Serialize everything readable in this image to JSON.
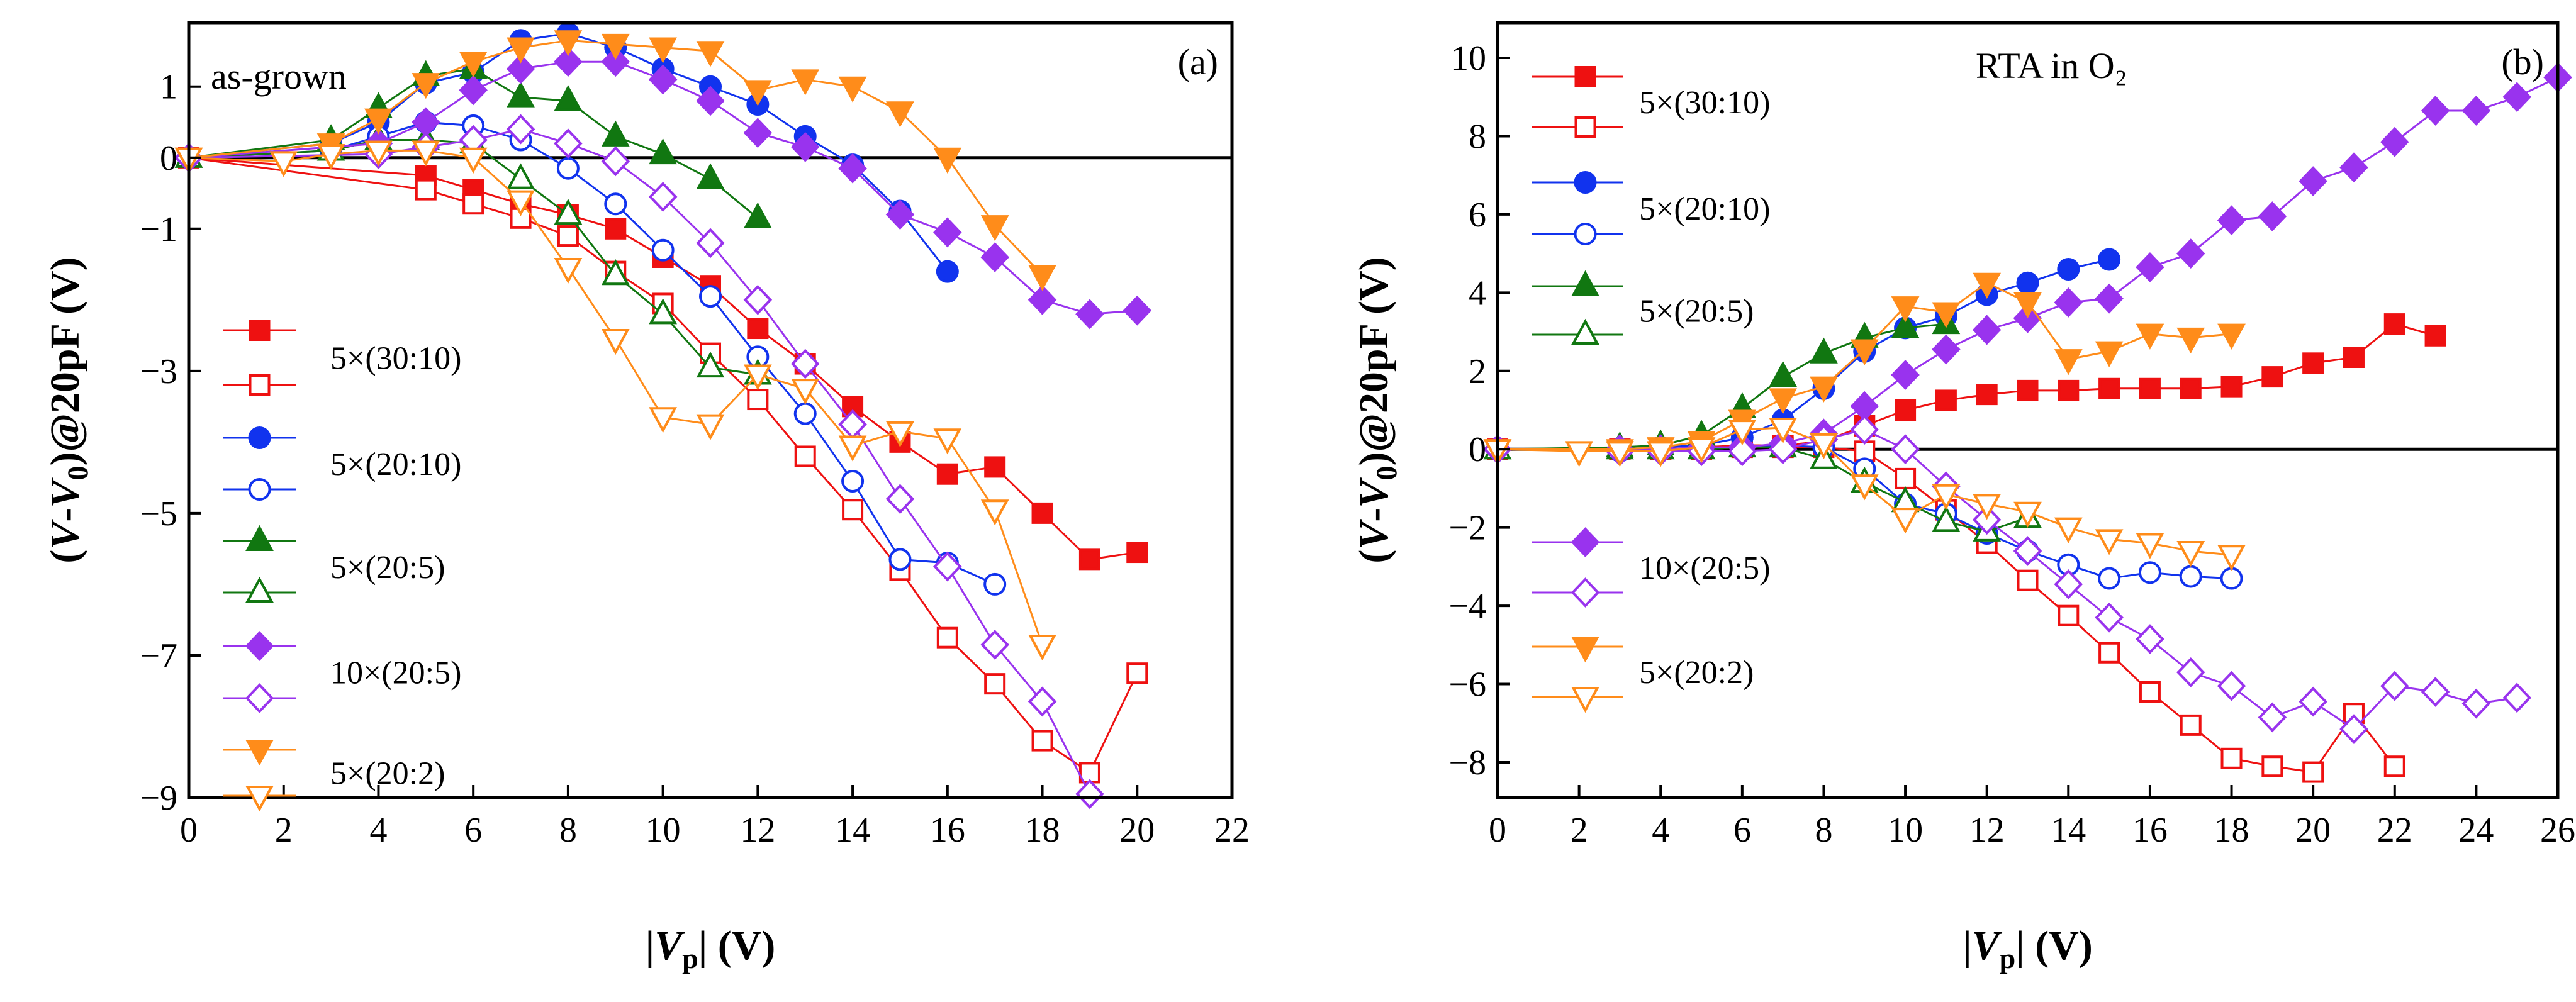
{
  "colors": {
    "5x30_10": "#ee1111",
    "5x20_10": "#1133ee",
    "5x20_5": "#117711",
    "10x20_5": "#9933ee",
    "5x20_2": "#ff8c1a"
  },
  "chart_data": [
    {
      "type": "line",
      "panel_label": "(a)",
      "annotation": "as-grown",
      "xlabel": "|V_p| (V)",
      "ylabel": "(V-V_0)@20pF (V)",
      "xlim": [
        0,
        22
      ],
      "ylim": [
        -9,
        1.9
      ],
      "xticks": [
        "0",
        "2",
        "4",
        "6",
        "8",
        "10",
        "12",
        "14",
        "16",
        "18",
        "20",
        "22"
      ],
      "yticks": [
        "1",
        "0",
        "−1",
        "−3",
        "−5",
        "−7",
        "−9"
      ],
      "ytick_values": [
        1,
        0,
        -1,
        -3,
        -5,
        -7,
        -9
      ],
      "series": [
        {
          "name": "5×(30:10)",
          "color_key": "5x30_10",
          "marker": "square",
          "filled": true,
          "x": [
            0,
            5,
            6,
            7,
            8,
            9,
            10,
            11,
            12,
            13,
            14,
            15,
            16,
            17,
            18,
            19,
            20
          ],
          "y": [
            0,
            -0.25,
            -0.45,
            -0.65,
            -0.8,
            -1.0,
            -1.4,
            -1.8,
            -2.4,
            -2.9,
            -3.5,
            -4.0,
            -4.45,
            -4.35,
            -5.0,
            -5.65,
            -5.55
          ]
        },
        {
          "name": "5×(30:10)",
          "color_key": "5x30_10",
          "marker": "square",
          "filled": false,
          "x": [
            0,
            5,
            6,
            7,
            8,
            9,
            10,
            11,
            12,
            13,
            14,
            15,
            16,
            17,
            18,
            19,
            20
          ],
          "y": [
            0,
            -0.45,
            -0.65,
            -0.85,
            -1.1,
            -1.6,
            -2.05,
            -2.75,
            -3.4,
            -4.2,
            -4.95,
            -5.8,
            -6.75,
            -7.4,
            -8.2,
            -8.65,
            -7.25
          ]
        },
        {
          "name": "5×(20:10)",
          "color_key": "5x20_10",
          "marker": "circle",
          "filled": true,
          "x": [
            0,
            3,
            4,
            5,
            6,
            7,
            8,
            9,
            10,
            11,
            12,
            13,
            14,
            15,
            16
          ],
          "y": [
            0,
            0.2,
            0.5,
            1.05,
            1.2,
            1.65,
            1.75,
            1.55,
            1.25,
            1.0,
            0.75,
            0.3,
            -0.1,
            -0.75,
            -1.6
          ]
        },
        {
          "name": "5×(20:10)",
          "color_key": "5x20_10",
          "marker": "circle",
          "filled": false,
          "x": [
            0,
            3,
            4,
            5,
            6,
            7,
            8,
            9,
            10,
            11,
            12,
            13,
            14,
            15,
            16,
            17
          ],
          "y": [
            0,
            0.1,
            0.3,
            0.5,
            0.45,
            0.25,
            -0.15,
            -0.65,
            -1.3,
            -1.95,
            -2.8,
            -3.6,
            -4.55,
            -5.65,
            -5.7,
            -6.0
          ]
        },
        {
          "name": "5×(20:5)",
          "color_key": "5x20_5",
          "marker": "triangle",
          "filled": true,
          "x": [
            0,
            3,
            4,
            5,
            6,
            7,
            8,
            9,
            10,
            11,
            12
          ],
          "y": [
            0,
            0.25,
            0.7,
            1.15,
            1.25,
            0.85,
            0.8,
            0.3,
            0.05,
            -0.3,
            -0.85
          ]
        },
        {
          "name": "5×(20:5)",
          "color_key": "5x20_5",
          "marker": "triangle",
          "filled": false,
          "x": [
            0,
            3,
            4,
            5,
            6,
            7,
            8,
            9,
            10,
            11,
            12
          ],
          "y": [
            0,
            0.1,
            0.25,
            0.25,
            0.2,
            -0.3,
            -0.8,
            -1.65,
            -2.2,
            -2.95,
            -3.05
          ]
        },
        {
          "name": "10×(20:5)",
          "color_key": "10x20_5",
          "marker": "diamond",
          "filled": true,
          "x": [
            0,
            4,
            5,
            6,
            7,
            8,
            9,
            10,
            11,
            12,
            13,
            14,
            15,
            16,
            17,
            18,
            19,
            20
          ],
          "y": [
            0,
            0.2,
            0.5,
            0.95,
            1.25,
            1.35,
            1.35,
            1.1,
            0.8,
            0.35,
            0.15,
            -0.15,
            -0.8,
            -1.05,
            -1.4,
            -2.0,
            -2.2,
            -2.15
          ]
        },
        {
          "name": "10×(20:5)",
          "color_key": "10x20_5",
          "marker": "diamond",
          "filled": false,
          "x": [
            0,
            4,
            5,
            6,
            7,
            8,
            9,
            10,
            11,
            12,
            13,
            14,
            15,
            16,
            17,
            18,
            19
          ],
          "y": [
            0,
            0.05,
            0.15,
            0.25,
            0.4,
            0.2,
            -0.05,
            -0.55,
            -1.2,
            -2.0,
            -2.9,
            -3.75,
            -4.8,
            -5.75,
            -6.85,
            -7.65,
            -8.95
          ]
        },
        {
          "name": "5×(20:2)",
          "color_key": "5x20_2",
          "marker": "triangle-down",
          "filled": true,
          "x": [
            0,
            3,
            4,
            5,
            6,
            7,
            8,
            9,
            10,
            11,
            12,
            13,
            14,
            15,
            16,
            17,
            18
          ],
          "y": [
            0,
            0.2,
            0.55,
            1.05,
            1.35,
            1.55,
            1.65,
            1.6,
            1.55,
            1.5,
            0.95,
            1.1,
            1.0,
            0.65,
            0.0,
            -0.95,
            -1.65
          ]
        },
        {
          "name": "5×(20:2)",
          "color_key": "5x20_2",
          "marker": "triangle-down",
          "filled": false,
          "x": [
            0,
            2,
            3,
            4,
            5,
            6,
            7,
            8,
            9,
            10,
            11,
            12,
            13,
            14,
            15,
            16,
            17,
            18
          ],
          "y": [
            0,
            -0.05,
            0.05,
            0.1,
            0.1,
            0.0,
            -0.6,
            -1.55,
            -2.55,
            -3.65,
            -3.75,
            -3.05,
            -3.25,
            -4.05,
            -3.85,
            -3.95,
            -4.95,
            -6.85
          ]
        }
      ]
    },
    {
      "type": "line",
      "panel_label": "(b)",
      "annotation": "RTA in O₂",
      "xlabel": "|V_p| (V)",
      "ylabel": "(V-V_0)@20pF (V)",
      "xlim": [
        0,
        26
      ],
      "ylim": [
        -8.9,
        10.9
      ],
      "xticks": [
        "0",
        "2",
        "4",
        "6",
        "8",
        "10",
        "12",
        "14",
        "16",
        "18",
        "20",
        "22",
        "24",
        "26"
      ],
      "yticks": [
        "10",
        "8",
        "6",
        "4",
        "2",
        "0",
        "−2",
        "−4",
        "−6",
        "−8"
      ],
      "ytick_values": [
        10,
        8,
        6,
        4,
        2,
        0,
        -2,
        -4,
        -6,
        -8
      ],
      "series": [
        {
          "name": "5×(30:10)",
          "color_key": "5x30_10",
          "marker": "square",
          "filled": true,
          "x": [
            0,
            3,
            4,
            5,
            6,
            7,
            8,
            9,
            10,
            11,
            12,
            13,
            14,
            15,
            16,
            17,
            18,
            19,
            20,
            21,
            22,
            23
          ],
          "y": [
            0,
            0.0,
            0.0,
            0.05,
            0.1,
            0.1,
            0.2,
            0.6,
            1.0,
            1.25,
            1.4,
            1.5,
            1.5,
            1.55,
            1.55,
            1.55,
            1.6,
            1.85,
            2.2,
            2.35,
            3.2,
            2.9
          ]
        },
        {
          "name": "5×(30:10)",
          "color_key": "5x30_10",
          "marker": "square",
          "filled": false,
          "x": [
            0,
            3,
            4,
            5,
            6,
            7,
            8,
            9,
            10,
            11,
            12,
            13,
            14,
            15,
            16,
            17,
            18,
            19,
            20,
            21,
            22
          ],
          "y": [
            0,
            0.0,
            0.0,
            0.0,
            0.05,
            0.05,
            0.05,
            -0.05,
            -0.75,
            -1.55,
            -2.4,
            -3.35,
            -4.25,
            -5.2,
            -6.2,
            -7.05,
            -7.9,
            -8.1,
            -8.25,
            -6.75,
            -8.1
          ]
        },
        {
          "name": "5×(20:10)",
          "color_key": "5x20_10",
          "marker": "circle",
          "filled": true,
          "x": [
            0,
            3,
            4,
            5,
            6,
            7,
            8,
            9,
            10,
            11,
            12,
            13,
            14,
            15
          ],
          "y": [
            0,
            0.0,
            0.05,
            0.1,
            0.3,
            0.75,
            1.55,
            2.5,
            3.1,
            3.4,
            3.95,
            4.25,
            4.6,
            4.85
          ]
        },
        {
          "name": "5×(20:10)",
          "color_key": "5x20_10",
          "marker": "circle",
          "filled": false,
          "x": [
            0,
            3,
            4,
            5,
            6,
            7,
            8,
            9,
            10,
            11,
            12,
            13,
            14,
            15,
            16,
            17,
            18
          ],
          "y": [
            0,
            -0.05,
            0.0,
            0.0,
            0.05,
            0.1,
            0.05,
            -0.5,
            -1.4,
            -1.65,
            -2.15,
            -2.6,
            -2.95,
            -3.3,
            -3.15,
            -3.25,
            -3.3
          ]
        },
        {
          "name": "5×(20:5)",
          "color_key": "5x20_5",
          "marker": "triangle",
          "filled": true,
          "x": [
            0,
            3,
            4,
            5,
            6,
            7,
            8,
            9,
            10,
            11
          ],
          "y": [
            0,
            0.05,
            0.1,
            0.35,
            1.05,
            1.85,
            2.45,
            2.85,
            3.1,
            3.2
          ]
        },
        {
          "name": "5×(20:5)",
          "color_key": "5x20_5",
          "marker": "triangle",
          "filled": false,
          "x": [
            0,
            3,
            4,
            5,
            6,
            7,
            8,
            9,
            10,
            11,
            12,
            13
          ],
          "y": [
            0,
            0.0,
            0.0,
            0.0,
            0.05,
            0.05,
            -0.25,
            -0.85,
            -1.35,
            -1.85,
            -2.1,
            -1.75
          ]
        },
        {
          "name": "10×(20:5)",
          "color_key": "10x20_5",
          "marker": "diamond",
          "filled": true,
          "x": [
            0,
            3,
            4,
            5,
            6,
            7,
            8,
            9,
            10,
            11,
            12,
            13,
            14,
            15,
            16,
            17,
            18,
            19,
            20,
            21,
            22,
            23,
            24,
            25,
            26
          ],
          "y": [
            0,
            0.0,
            0.0,
            0.05,
            0.05,
            0.15,
            0.4,
            1.1,
            1.9,
            2.55,
            3.05,
            3.35,
            3.75,
            3.85,
            4.65,
            5.0,
            5.85,
            5.95,
            6.85,
            7.2,
            7.85,
            8.65,
            8.65,
            9.0,
            9.5
          ]
        },
        {
          "name": "10×(20:5)",
          "color_key": "10x20_5",
          "marker": "diamond",
          "filled": false,
          "x": [
            0,
            3,
            4,
            5,
            6,
            7,
            8,
            9,
            10,
            11,
            12,
            13,
            14,
            15,
            16,
            17,
            18,
            19,
            20,
            21,
            22,
            23,
            24,
            25
          ],
          "y": [
            0,
            -0.05,
            -0.05,
            -0.05,
            -0.05,
            0.0,
            0.25,
            0.5,
            0.0,
            -0.95,
            -1.8,
            -2.6,
            -3.45,
            -4.3,
            -4.85,
            -5.7,
            -6.05,
            -6.85,
            -6.45,
            -7.15,
            -6.05,
            -6.2,
            -6.5,
            -6.35
          ]
        },
        {
          "name": "5×(20:2)",
          "color_key": "5x20_2",
          "marker": "triangle-down",
          "filled": true,
          "x": [
            0,
            3,
            4,
            5,
            6,
            7,
            8,
            9,
            10,
            11,
            12,
            13,
            14,
            15,
            16,
            17,
            18
          ],
          "y": [
            0,
            0.0,
            0.05,
            0.2,
            0.75,
            1.3,
            1.6,
            2.55,
            3.65,
            3.5,
            4.25,
            3.75,
            2.3,
            2.5,
            2.95,
            2.85,
            2.95
          ]
        },
        {
          "name": "5×(20:2)",
          "color_key": "5x20_2",
          "marker": "triangle-down",
          "filled": false,
          "x": [
            0,
            2,
            3,
            4,
            5,
            6,
            7,
            8,
            9,
            10,
            11,
            12,
            13,
            14,
            15,
            16,
            17,
            18
          ],
          "y": [
            0,
            -0.05,
            -0.05,
            -0.05,
            0.05,
            0.5,
            0.55,
            0.15,
            -0.9,
            -1.75,
            -1.15,
            -1.4,
            -1.6,
            -2.0,
            -2.3,
            -2.4,
            -2.6,
            -2.7
          ]
        }
      ]
    }
  ]
}
